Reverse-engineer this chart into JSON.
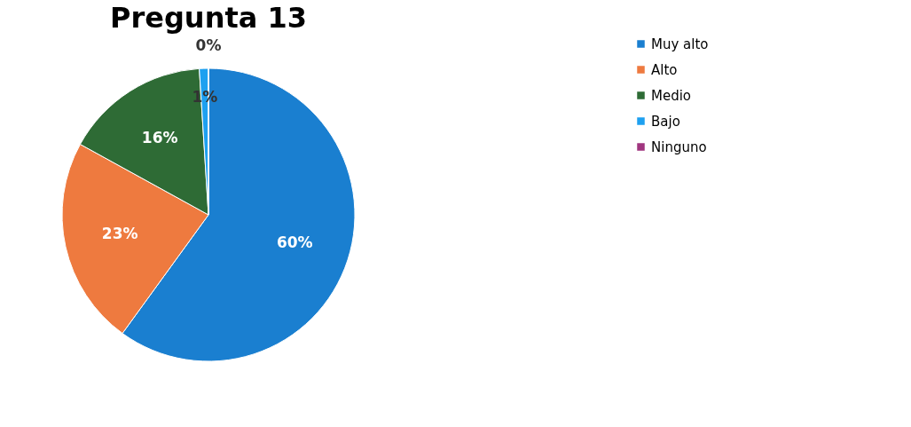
{
  "chart_data": {
    "type": "pie",
    "title": "Pregunta 13",
    "categories": [
      "Muy alto",
      "Alto",
      "Medio",
      "Bajo",
      "Ninguno"
    ],
    "values": [
      60,
      23,
      16,
      1,
      0
    ],
    "colors": [
      "#1a7fd0",
      "#ee7a3f",
      "#2e6b35",
      "#1ea0f0",
      "#a0357f"
    ],
    "value_labels": [
      "60%",
      "23%",
      "16%",
      "1%",
      "0%"
    ],
    "legend": "right"
  }
}
